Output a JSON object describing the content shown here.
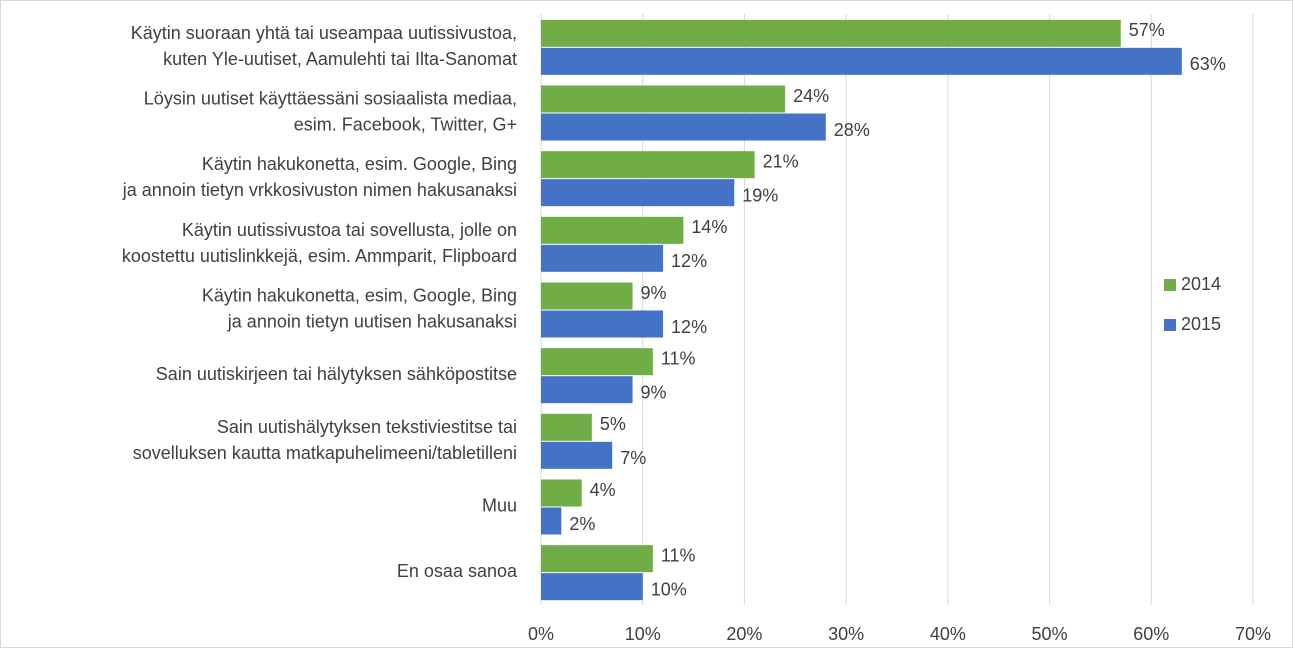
{
  "chart_data": {
    "type": "bar",
    "orientation": "horizontal",
    "categories": [
      "Käytin suoraan yhtä tai useampaa uutissivustoa,\nkuten Yle-uutiset, Aamulehti tai Ilta-Sanomat",
      "Löysin uutiset käyttäessäni sosiaalista mediaa,\nesim. Facebook, Twitter, G+",
      "Käytin hakukonetta, esim. Google, Bing\nja annoin tietyn vrkkosivuston nimen hakusanaksi",
      "Käytin uutissivustoa tai sovellusta, jolle on\nkoostettu uutislinkkejä, esim. Ammparit, Flipboard",
      "Käytin hakukonetta, esim, Google, Bing\nja annoin tietyn uutisen hakusanaksi",
      "Sain uutiskirjeen tai hälytyksen sähköpostitse",
      "Sain uutishälytyksen tekstiviestitse tai\nsovelluksen kautta matkapuhelimeeni/tabletilleni",
      "Muu",
      "En osaa sanoa"
    ],
    "series": [
      {
        "name": "2014",
        "color": "#70ad47",
        "values": [
          57,
          24,
          21,
          14,
          9,
          11,
          5,
          4,
          11
        ],
        "value_labels": [
          "57%",
          "24%",
          "21%",
          "14%",
          "9%",
          "11%",
          "5%",
          "4%",
          "11%"
        ]
      },
      {
        "name": "2015",
        "color": "#4472c4",
        "values": [
          63,
          28,
          19,
          12,
          12,
          9,
          7,
          2,
          10
        ],
        "value_labels": [
          "63%",
          "28%",
          "19%",
          "12%",
          "12%",
          "9%",
          "7%",
          "2%",
          "10%"
        ]
      }
    ],
    "xlim": [
      0,
      70
    ],
    "xticks": [
      {
        "value": 0,
        "label": "0%"
      },
      {
        "value": 10,
        "label": "10%"
      },
      {
        "value": 20,
        "label": "20%"
      },
      {
        "value": 30,
        "label": "30%"
      },
      {
        "value": 40,
        "label": "40%"
      },
      {
        "value": 50,
        "label": "50%"
      },
      {
        "value": 60,
        "label": "60%"
      },
      {
        "value": 70,
        "label": "70%"
      }
    ],
    "grid": true,
    "legend": "right"
  }
}
